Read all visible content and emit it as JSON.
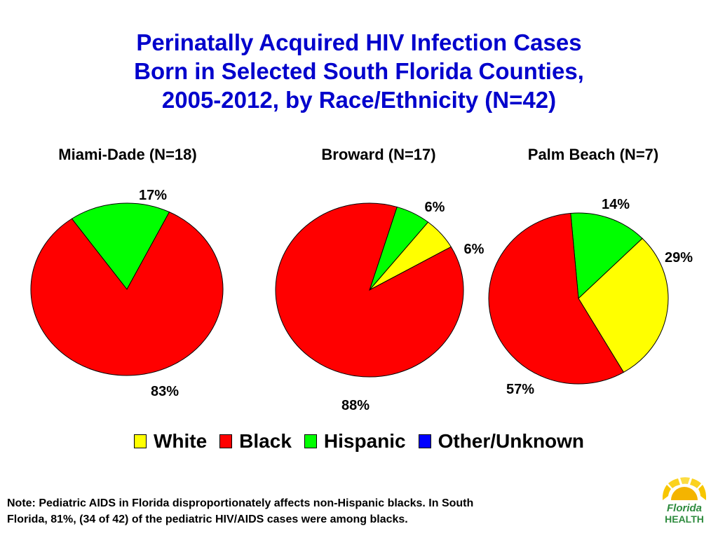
{
  "title_lines": [
    "Perinatally Acquired HIV Infection Cases",
    "Born in Selected South Florida Counties,",
    "2005-2012, by Race/Ethnicity (N=42)"
  ],
  "colors": {
    "White": "#ffff00",
    "Black": "#ff0000",
    "Hispanic": "#00ff00",
    "Other/Unknown": "#0000ff",
    "title": "#0000cc"
  },
  "chart_data": [
    {
      "type": "pie",
      "title": "Miami-Dade (N=18)",
      "slices": [
        {
          "category": "Hispanic",
          "value": 17,
          "label": "17%"
        },
        {
          "category": "Black",
          "value": 83,
          "label": "83%"
        }
      ]
    },
    {
      "type": "pie",
      "title": "Broward (N=17)",
      "slices": [
        {
          "category": "Hispanic",
          "value": 6,
          "label": "6%"
        },
        {
          "category": "White",
          "value": 6,
          "label": "6%"
        },
        {
          "category": "Black",
          "value": 88,
          "label": "88%"
        }
      ]
    },
    {
      "type": "pie",
      "title": "Palm Beach (N=7)",
      "slices": [
        {
          "category": "Hispanic",
          "value": 14,
          "label": "14%"
        },
        {
          "category": "White",
          "value": 29,
          "label": "29%"
        },
        {
          "category": "Black",
          "value": 57,
          "label": "57%"
        }
      ]
    }
  ],
  "legend": [
    {
      "label": "White",
      "color": "#ffff00"
    },
    {
      "label": "Black",
      "color": "#ff0000"
    },
    {
      "label": "Hispanic",
      "color": "#00ff00"
    },
    {
      "label": "Other/Unknown",
      "color": "#0000ff"
    }
  ],
  "note_lines": [
    "Note:  Pediatric AIDS in Florida disproportionately affects non-Hispanic blacks.  In South",
    "Florida, 81%, (34 of 42) of the pediatric HIV/AIDS cases were among blacks."
  ],
  "logo": {
    "line1": "Florida",
    "line2": "HEALTH"
  }
}
